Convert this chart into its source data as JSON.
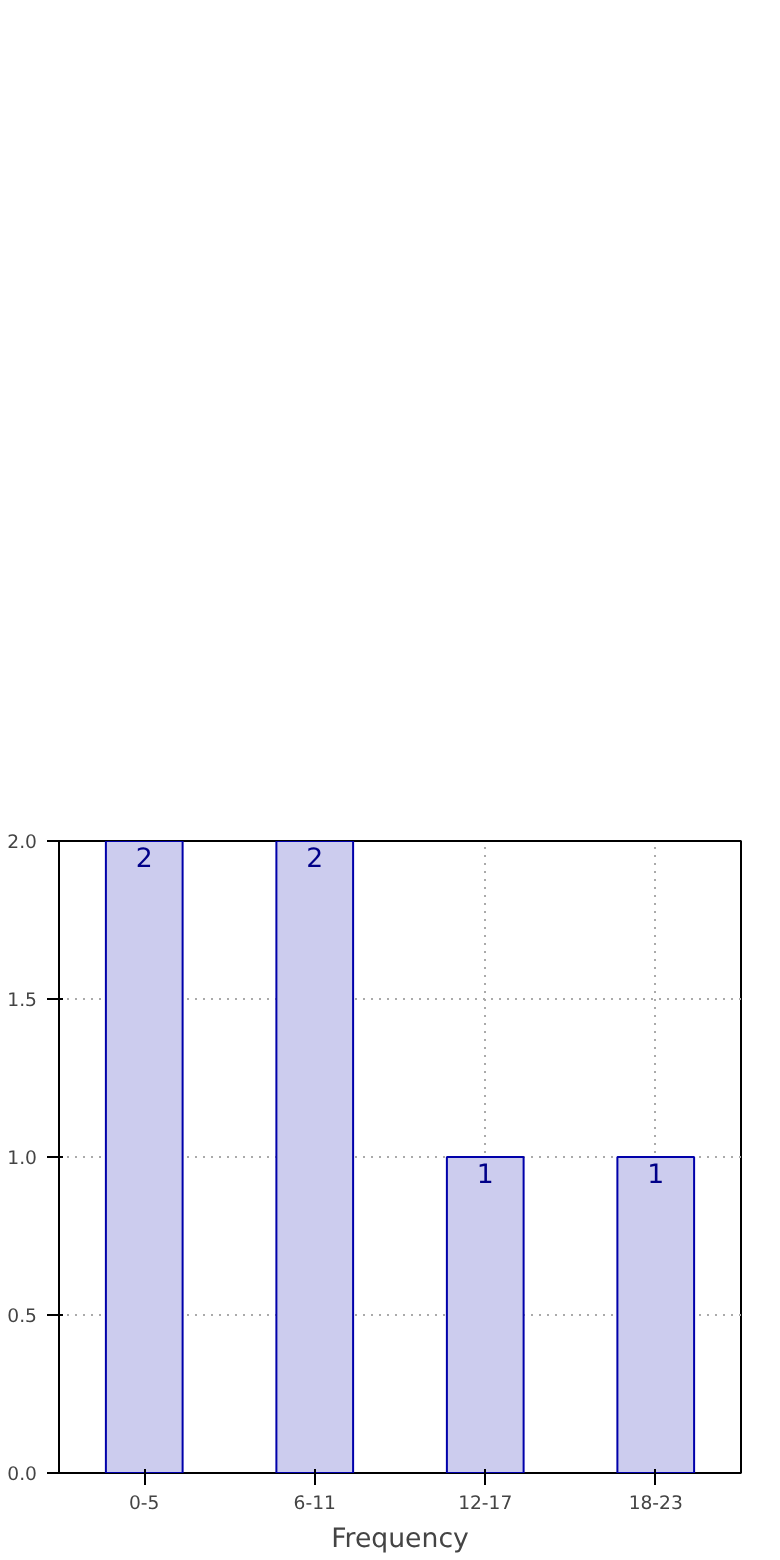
{
  "chart_data": {
    "type": "bar",
    "xlabel": "Frequency",
    "categories": [
      "0-5",
      "6-11",
      "12-17",
      "18-23"
    ],
    "values": [
      2,
      2,
      1,
      1
    ],
    "color": "#ccccee",
    "ylim": [
      0,
      2
    ],
    "yticks": [
      {
        "value": 0,
        "label": "0.0"
      },
      {
        "value": 0.5,
        "label": "0.5"
      },
      {
        "value": 1,
        "label": "1.0"
      },
      {
        "value": 1.5,
        "label": "1.5"
      },
      {
        "value": 2,
        "label": "2.0"
      }
    ],
    "grid": true,
    "data_labels": true
  }
}
